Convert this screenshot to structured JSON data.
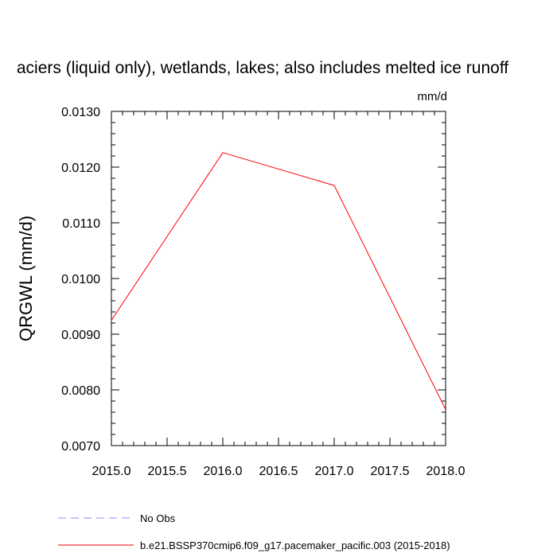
{
  "chart_data": {
    "type": "line",
    "title": "aciers (liquid only), wetlands, lakes; also includes melted ice runoff",
    "units_label": "mm/d",
    "ylabel": "QRGWL  (mm/d)",
    "xlabel": "",
    "xlim": [
      2015.0,
      2018.0
    ],
    "ylim": [
      0.007,
      0.013
    ],
    "x_major_ticks": [
      2015.0,
      2015.5,
      2016.0,
      2016.5,
      2017.0,
      2017.5,
      2018.0
    ],
    "x_tick_labels": [
      "2015.0",
      "2015.5",
      "2016.0",
      "2016.5",
      "2017.0",
      "2017.5",
      "2018.0"
    ],
    "y_major_ticks": [
      0.007,
      0.008,
      0.009,
      0.01,
      0.011,
      0.012,
      0.013
    ],
    "y_tick_labels": [
      "0.0070",
      "0.0080",
      "0.0090",
      "0.0100",
      "0.0110",
      "0.0120",
      "0.0130"
    ],
    "grid": false,
    "legend_position": "bottom",
    "series": [
      {
        "name": "No Obs",
        "color": "#8c8cff",
        "dash": "dashed",
        "x": [],
        "y": []
      },
      {
        "name": "b.e21.BSSP370cmip6.f09_g17.pacemaker_pacific.003 (2015-2018)",
        "color": "#ff0000",
        "dash": "solid",
        "x": [
          2015.0,
          2016.0,
          2017.0,
          2018.0
        ],
        "y": [
          0.00925,
          0.01226,
          0.01167,
          0.00765
        ]
      }
    ]
  }
}
